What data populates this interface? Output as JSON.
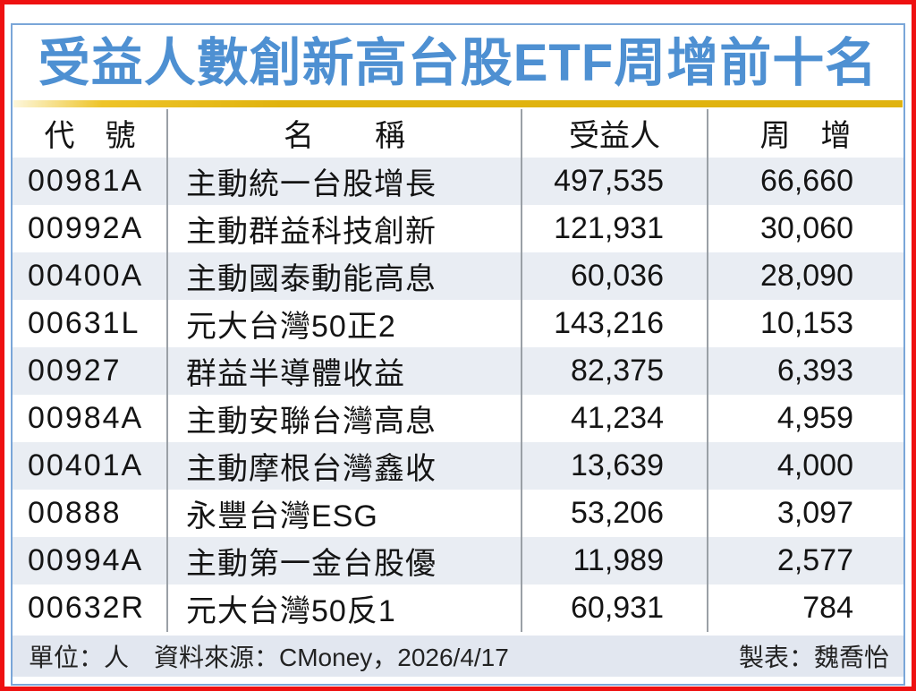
{
  "title": "受益人數創新高台股ETF周增前十名",
  "table": {
    "headers": {
      "code": "代　號",
      "name": "名　　稱",
      "holders": "受益人",
      "weekly": "周　增"
    },
    "rows": [
      {
        "code": "00981A",
        "name": "主動統一台股增長",
        "holders": "497,535",
        "weekly": "66,660"
      },
      {
        "code": "00992A",
        "name": "主動群益科技創新",
        "holders": "121,931",
        "weekly": "30,060"
      },
      {
        "code": "00400A",
        "name": "主動國泰動能高息",
        "holders": "60,036",
        "weekly": "28,090"
      },
      {
        "code": "00631L",
        "name": "元大台灣50正2",
        "holders": "143,216",
        "weekly": "10,153"
      },
      {
        "code": "00927",
        "name": "群益半導體收益",
        "holders": "82,375",
        "weekly": "6,393"
      },
      {
        "code": "00984A",
        "name": "主動安聯台灣高息",
        "holders": "41,234",
        "weekly": "4,959"
      },
      {
        "code": "00401A",
        "name": "主動摩根台灣鑫收",
        "holders": "13,639",
        "weekly": "4,000"
      },
      {
        "code": "00888",
        "name": "永豐台灣ESG",
        "holders": "53,206",
        "weekly": "3,097"
      },
      {
        "code": "00994A",
        "name": "主動第一金台股優",
        "holders": "11,989",
        "weekly": "2,577"
      },
      {
        "code": "00632R",
        "name": "元大台灣50反1",
        "holders": "60,931",
        "weekly": "784"
      }
    ]
  },
  "footer": {
    "left": "單位：人　資料來源：CMoney，2026/4/17",
    "right": "製表：魏喬怡"
  },
  "colors": {
    "outer_border": "#ee1111",
    "inner_border": "#7aa6d8",
    "title_color": "#4e90d2",
    "accent_gold": "#e0b30f",
    "row_stripe": "#e9edf3",
    "footer_bg": "#e2e7f0"
  },
  "chart_data": {
    "type": "table",
    "title": "受益人數創新高台股ETF周增前十名",
    "columns": [
      "代號",
      "名稱",
      "受益人",
      "周增"
    ],
    "rows": [
      [
        "00981A",
        "主動統一台股增長",
        497535,
        66660
      ],
      [
        "00992A",
        "主動群益科技創新",
        121931,
        30060
      ],
      [
        "00400A",
        "主動國泰動能高息",
        60036,
        28090
      ],
      [
        "00631L",
        "元大台灣50正2",
        143216,
        10153
      ],
      [
        "00927",
        "群益半導體收益",
        82375,
        6393
      ],
      [
        "00984A",
        "主動安聯台灣高息",
        41234,
        4959
      ],
      [
        "00401A",
        "主動摩根台灣鑫收",
        13639,
        4000
      ],
      [
        "00888",
        "永豐台灣ESG",
        53206,
        3097
      ],
      [
        "00994A",
        "主動第一金台股優",
        11989,
        2577
      ],
      [
        "00632R",
        "元大台灣50反1",
        60931,
        784
      ]
    ],
    "unit": "人",
    "source": "CMoney，2026/4/17",
    "credit": "製表：魏喬怡"
  }
}
